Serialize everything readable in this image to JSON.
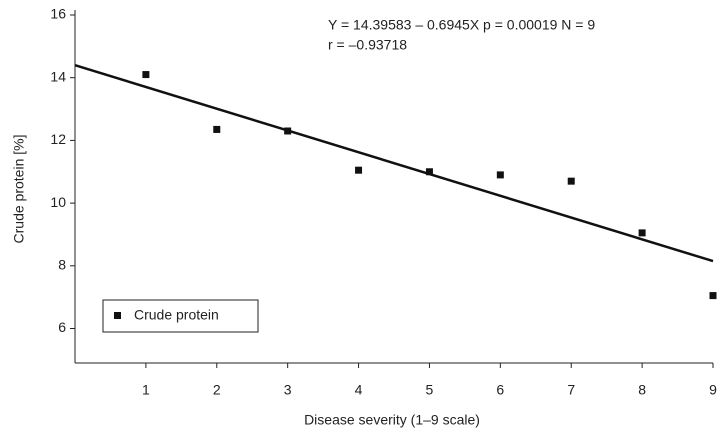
{
  "chart_data": {
    "type": "scatter",
    "x_label": "Disease severity (1–9 scale)",
    "y_label": "Crude protein [%]",
    "annotations": [
      "Y = 14.39583 – 0.6945X  p = 0.00019  N = 9",
      "r =  –0.93718"
    ],
    "series": [
      {
        "name": "Crude protein",
        "color": "#111111",
        "x": [
          1,
          2,
          3,
          4,
          5,
          6,
          7,
          8,
          9
        ],
        "values": [
          14.1,
          12.35,
          12.3,
          11.05,
          11.0,
          10.9,
          10.7,
          9.05,
          7.05
        ]
      }
    ],
    "trend_line": {
      "color": "#111111",
      "x": [
        0,
        9
      ],
      "values": [
        14.4,
        8.15
      ]
    },
    "xlim": [
      0,
      9
    ],
    "xticks": [
      1,
      2,
      3,
      4,
      5,
      6,
      7,
      8,
      9
    ],
    "ylim": [
      4.9,
      16
    ],
    "yticks": [
      6,
      8,
      10,
      12,
      14,
      16
    ],
    "legend": "lower left"
  }
}
